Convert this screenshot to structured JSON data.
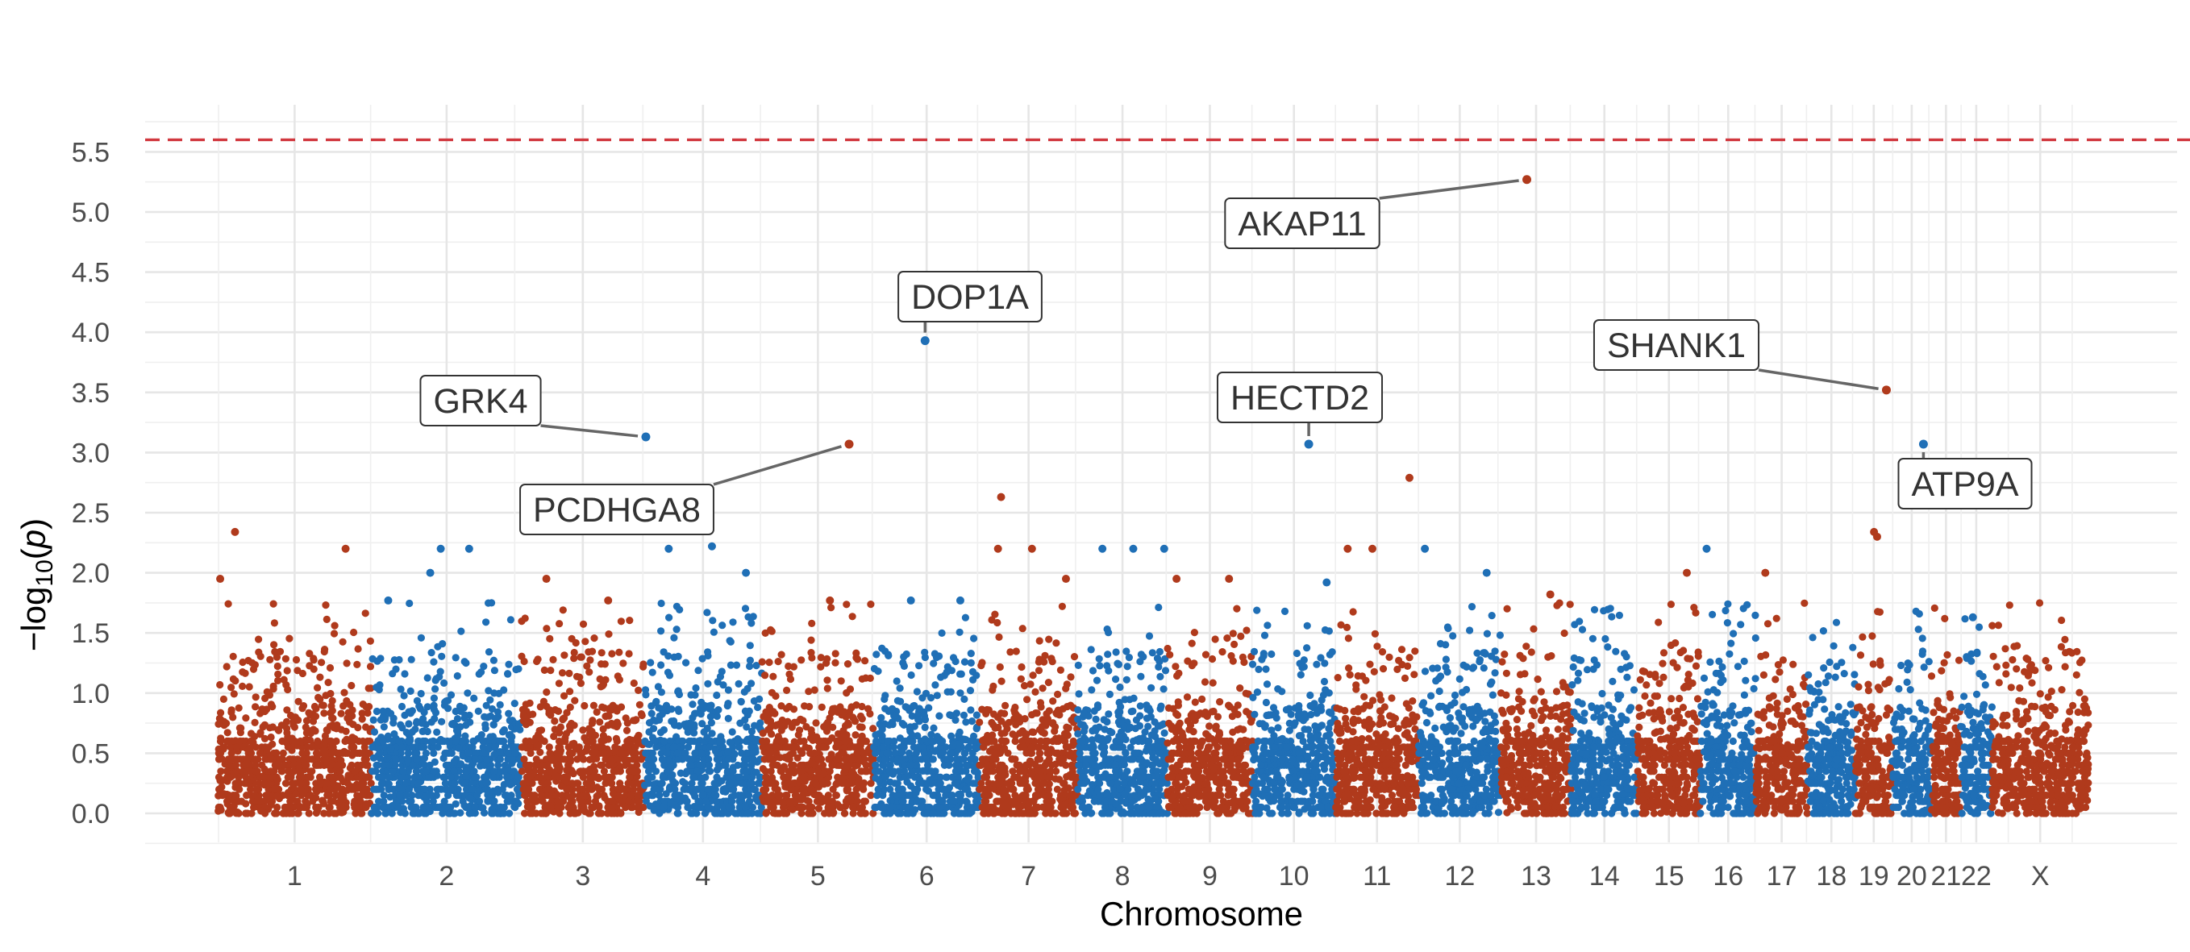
{
  "chart_data": {
    "type": "scatter",
    "title": "",
    "xlabel": "Chromosome",
    "ylabel_prefix": "−log",
    "ylabel_sub": "10",
    "ylabel_var": "p",
    "ylim": [
      -0.25,
      5.95
    ],
    "yticks": [
      0.0,
      0.5,
      1.0,
      1.5,
      2.0,
      2.5,
      3.0,
      3.5,
      4.0,
      4.5,
      5.0,
      5.5
    ],
    "ytick_labels": [
      "0.0",
      "0.5",
      "1.0",
      "1.5",
      "2.0",
      "2.5",
      "3.0",
      "3.5",
      "4.0",
      "4.5",
      "5.0",
      "5.5"
    ],
    "grid": true,
    "legend": "none",
    "significance_threshold": 5.6,
    "colors": {
      "odd": "#b03a1c",
      "even": "#1f6fb6",
      "threshold": "#d1383f",
      "label_text": "#333333",
      "leader": "#666666"
    },
    "chromosomes": [
      {
        "label": "1",
        "length_mb": 249,
        "color": "odd"
      },
      {
        "label": "2",
        "length_mb": 243,
        "color": "even"
      },
      {
        "label": "3",
        "length_mb": 198,
        "color": "odd"
      },
      {
        "label": "4",
        "length_mb": 191,
        "color": "even"
      },
      {
        "label": "5",
        "length_mb": 181,
        "color": "odd"
      },
      {
        "label": "6",
        "length_mb": 171,
        "color": "even"
      },
      {
        "label": "7",
        "length_mb": 159,
        "color": "odd"
      },
      {
        "label": "8",
        "length_mb": 145,
        "color": "even"
      },
      {
        "label": "9",
        "length_mb": 138,
        "color": "odd"
      },
      {
        "label": "10",
        "length_mb": 134,
        "color": "even"
      },
      {
        "label": "11",
        "length_mb": 135,
        "color": "odd"
      },
      {
        "label": "12",
        "length_mb": 133,
        "color": "even"
      },
      {
        "label": "13",
        "length_mb": 114,
        "color": "odd"
      },
      {
        "label": "14",
        "length_mb": 107,
        "color": "even"
      },
      {
        "label": "15",
        "length_mb": 102,
        "color": "odd"
      },
      {
        "label": "16",
        "length_mb": 90,
        "color": "even"
      },
      {
        "label": "17",
        "length_mb": 83,
        "color": "odd"
      },
      {
        "label": "18",
        "length_mb": 78,
        "color": "even"
      },
      {
        "label": "19",
        "length_mb": 59,
        "color": "odd"
      },
      {
        "label": "20",
        "length_mb": 64,
        "color": "even"
      },
      {
        "label": "21",
        "length_mb": 47,
        "color": "odd"
      },
      {
        "label": "22",
        "length_mb": 51,
        "color": "even"
      },
      {
        "label": "X",
        "length_mb": 156,
        "color": "odd"
      }
    ],
    "top_hits": [
      {
        "gene": "GRK4",
        "chromosome": "4",
        "position_mb": 3,
        "neg_log10_p": 3.13
      },
      {
        "gene": "PCDHGA8",
        "chromosome": "5",
        "position_mb": 141,
        "neg_log10_p": 3.07
      },
      {
        "gene": "DOP1A",
        "chromosome": "6",
        "position_mb": 83,
        "neg_log10_p": 3.93
      },
      {
        "gene": "HECTD2",
        "chromosome": "10",
        "position_mb": 91,
        "neg_log10_p": 3.07
      },
      {
        "gene": "AKAP11",
        "chromosome": "13",
        "position_mb": 42,
        "neg_log10_p": 5.27
      },
      {
        "gene": "SHANK1",
        "chromosome": "19",
        "position_mb": 50,
        "neg_log10_p": 3.52
      },
      {
        "gene": "ATP9A",
        "chromosome": "20",
        "position_mb": 51,
        "neg_log10_p": 3.07
      }
    ],
    "secondary_peaks": [
      {
        "chromosome": "1",
        "position_mb": 28,
        "neg_log10_p": 2.34
      },
      {
        "chromosome": "1",
        "position_mb": 4,
        "neg_log10_p": 1.95
      },
      {
        "chromosome": "1",
        "position_mb": 207,
        "neg_log10_p": 2.2
      },
      {
        "chromosome": "2",
        "position_mb": 27,
        "neg_log10_p": 1.77
      },
      {
        "chromosome": "2",
        "position_mb": 95,
        "neg_log10_p": 2.0
      },
      {
        "chromosome": "2",
        "position_mb": 112,
        "neg_log10_p": 2.2
      },
      {
        "chromosome": "2",
        "position_mb": 158,
        "neg_log10_p": 2.2
      },
      {
        "chromosome": "3",
        "position_mb": 40,
        "neg_log10_p": 1.95
      },
      {
        "chromosome": "3",
        "position_mb": 140,
        "neg_log10_p": 1.77
      },
      {
        "chromosome": "4",
        "position_mb": 40,
        "neg_log10_p": 2.2
      },
      {
        "chromosome": "4",
        "position_mb": 110,
        "neg_log10_p": 2.22
      },
      {
        "chromosome": "4",
        "position_mb": 165,
        "neg_log10_p": 2.0
      },
      {
        "chromosome": "5",
        "position_mb": 110,
        "neg_log10_p": 1.77
      },
      {
        "chromosome": "6",
        "position_mb": 60,
        "neg_log10_p": 1.77
      },
      {
        "chromosome": "6",
        "position_mb": 140,
        "neg_log10_p": 1.77
      },
      {
        "chromosome": "7",
        "position_mb": 35,
        "neg_log10_p": 2.63
      },
      {
        "chromosome": "7",
        "position_mb": 30,
        "neg_log10_p": 2.2
      },
      {
        "chromosome": "7",
        "position_mb": 85,
        "neg_log10_p": 2.2
      },
      {
        "chromosome": "7",
        "position_mb": 140,
        "neg_log10_p": 1.95
      },
      {
        "chromosome": "8",
        "position_mb": 40,
        "neg_log10_p": 2.2
      },
      {
        "chromosome": "8",
        "position_mb": 90,
        "neg_log10_p": 2.2
      },
      {
        "chromosome": "8",
        "position_mb": 140,
        "neg_log10_p": 2.2
      },
      {
        "chromosome": "9",
        "position_mb": 15,
        "neg_log10_p": 1.95
      },
      {
        "chromosome": "9",
        "position_mb": 100,
        "neg_log10_p": 1.95
      },
      {
        "chromosome": "10",
        "position_mb": 120,
        "neg_log10_p": 1.92
      },
      {
        "chromosome": "11",
        "position_mb": 20,
        "neg_log10_p": 2.2
      },
      {
        "chromosome": "11",
        "position_mb": 60,
        "neg_log10_p": 2.2
      },
      {
        "chromosome": "11",
        "position_mb": 120,
        "neg_log10_p": 2.79
      },
      {
        "chromosome": "12",
        "position_mb": 10,
        "neg_log10_p": 2.2
      },
      {
        "chromosome": "12",
        "position_mb": 110,
        "neg_log10_p": 2.0
      },
      {
        "chromosome": "13",
        "position_mb": 80,
        "neg_log10_p": 1.82
      },
      {
        "chromosome": "15",
        "position_mb": 80,
        "neg_log10_p": 2.0
      },
      {
        "chromosome": "16",
        "position_mb": 10,
        "neg_log10_p": 2.2
      },
      {
        "chromosome": "17",
        "position_mb": 15,
        "neg_log10_p": 2.0
      },
      {
        "chromosome": "19",
        "position_mb": 30,
        "neg_log10_p": 2.34
      },
      {
        "chromosome": "19",
        "position_mb": 35,
        "neg_log10_p": 2.3
      },
      {
        "chromosome": "22",
        "position_mb": 20,
        "neg_log10_p": 1.63
      }
    ]
  }
}
